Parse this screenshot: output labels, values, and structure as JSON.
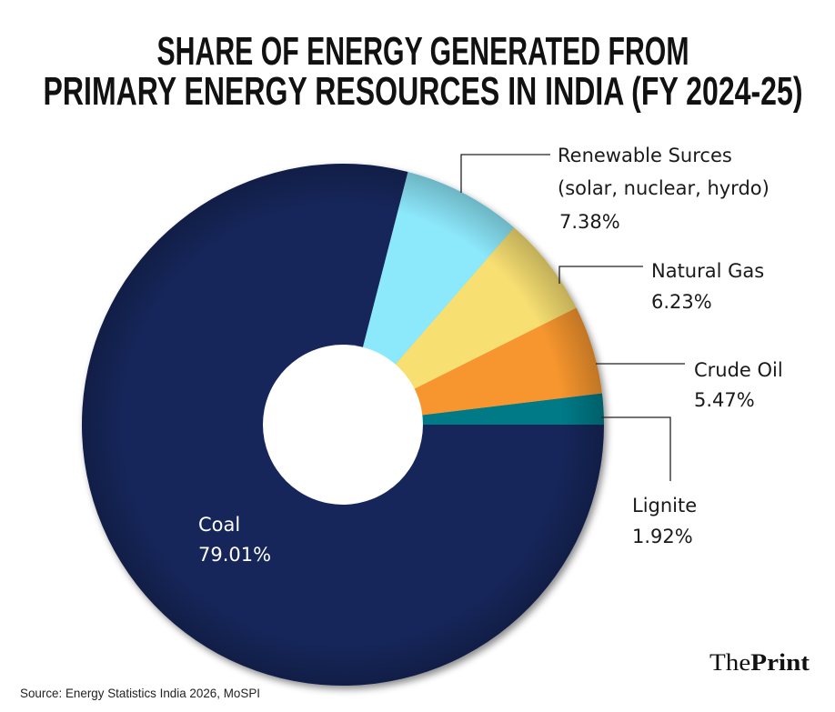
{
  "chart_data": {
    "type": "pie",
    "variant": "donut",
    "title": [
      "SHARE OF ENERGY GENERATED FROM",
      "PRIMARY ENERGY RESOURCES IN INDIA (FY 2024-25)"
    ],
    "slices": [
      {
        "name": "Lignite",
        "label_lines": [
          "Lignite"
        ],
        "value": 1.92,
        "value_label": "1.92%",
        "color": "#007a87"
      },
      {
        "name": "Crude Oil",
        "label_lines": [
          "Crude Oil"
        ],
        "value": 5.47,
        "value_label": "5.47%",
        "color": "#f7962e"
      },
      {
        "name": "Natural Gas",
        "label_lines": [
          "Natural Gas"
        ],
        "value": 6.23,
        "value_label": "6.23%",
        "color": "#f7df72"
      },
      {
        "name": "Renewable Surces (solar, nuclear, hyrdo)",
        "label_lines": [
          "Renewable Surces",
          "(solar, nuclear, hyrdo)"
        ],
        "value": 7.38,
        "value_label": "7.38%",
        "color": "#8ce8fb"
      },
      {
        "name": "Coal",
        "label_lines": [
          "Coal"
        ],
        "value": 79.01,
        "value_label": "79.01%",
        "color": "#15275a"
      }
    ],
    "start_angle": "3 o'clock, counter-clockwise"
  },
  "footer": {
    "source": "Source: Energy Statistics India 2026, MoSPI",
    "logo": {
      "the": "The",
      "print": "Print"
    }
  }
}
